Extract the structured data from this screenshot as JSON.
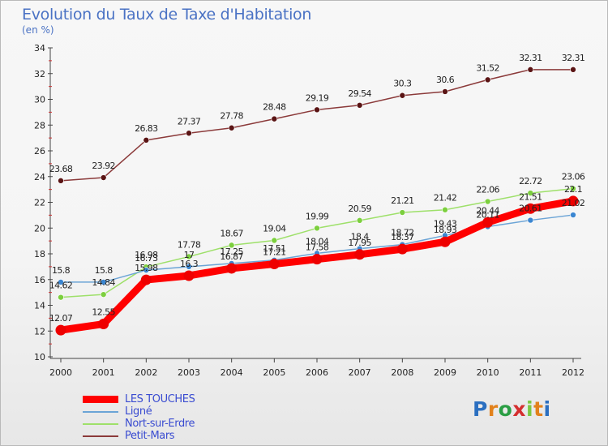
{
  "title": "Evolution du Taux de Taxe d'Habitation",
  "subtitle": "(en %)",
  "logo_text": "Proxiti",
  "colors": {
    "les_touches": "#ff0000",
    "ligne": "#6ba4d6",
    "nort": "#9ee06a",
    "petit_mars": "#8b3a3a"
  },
  "chart_data": {
    "type": "line",
    "x": [
      2000,
      2001,
      2002,
      2003,
      2004,
      2005,
      2006,
      2007,
      2008,
      2009,
      2010,
      2011,
      2012
    ],
    "ylim": [
      10,
      34
    ],
    "yticks": [
      10,
      12,
      14,
      16,
      18,
      20,
      22,
      24,
      26,
      28,
      30,
      32,
      34
    ],
    "grid": false,
    "legend": "bottom-left",
    "series": [
      {
        "name": "LES TOUCHES",
        "values": [
          12.07,
          12.55,
          15.98,
          16.3,
          16.87,
          17.21,
          17.58,
          17.95,
          18.37,
          18.93,
          20.44,
          21.51,
          22.1
        ]
      },
      {
        "name": "Ligné",
        "values": [
          15.8,
          15.8,
          16.73,
          17.0,
          17.25,
          17.51,
          18.04,
          18.4,
          18.72,
          19.43,
          20.11,
          20.61,
          21.02
        ]
      },
      {
        "name": "Nort-sur-Erdre",
        "values": [
          14.62,
          14.84,
          16.98,
          17.78,
          18.67,
          19.04,
          19.99,
          20.59,
          21.21,
          21.42,
          22.06,
          22.72,
          23.06
        ]
      },
      {
        "name": "Petit-Mars",
        "values": [
          23.68,
          23.92,
          26.83,
          27.37,
          27.78,
          28.48,
          29.19,
          29.54,
          30.3,
          30.6,
          31.52,
          32.31,
          32.31
        ]
      }
    ],
    "point_labels": [
      [
        "12.07",
        "12.55",
        "15.98",
        "16.3",
        "16.87",
        "17.21",
        "17.58",
        "17.95",
        "18.37",
        "18.93",
        "20.44",
        "21.51",
        "22.1"
      ],
      [
        "15.8",
        "15.8",
        "16.73",
        "17",
        "17.25",
        "17.51",
        "18.04",
        "18.4",
        "18.72",
        "19.43",
        "20.11",
        "20.61",
        "21.02"
      ],
      [
        "14.62",
        "14.84",
        "16.98",
        "17.78",
        "18.67",
        "19.04",
        "19.99",
        "20.59",
        "21.21",
        "21.42",
        "22.06",
        "22.72",
        "23.06"
      ],
      [
        "23.68",
        "23.92",
        "26.83",
        "27.37",
        "27.78",
        "28.48",
        "29.19",
        "29.54",
        "30.3",
        "30.6",
        "31.52",
        "32.31",
        "32.31"
      ]
    ]
  }
}
